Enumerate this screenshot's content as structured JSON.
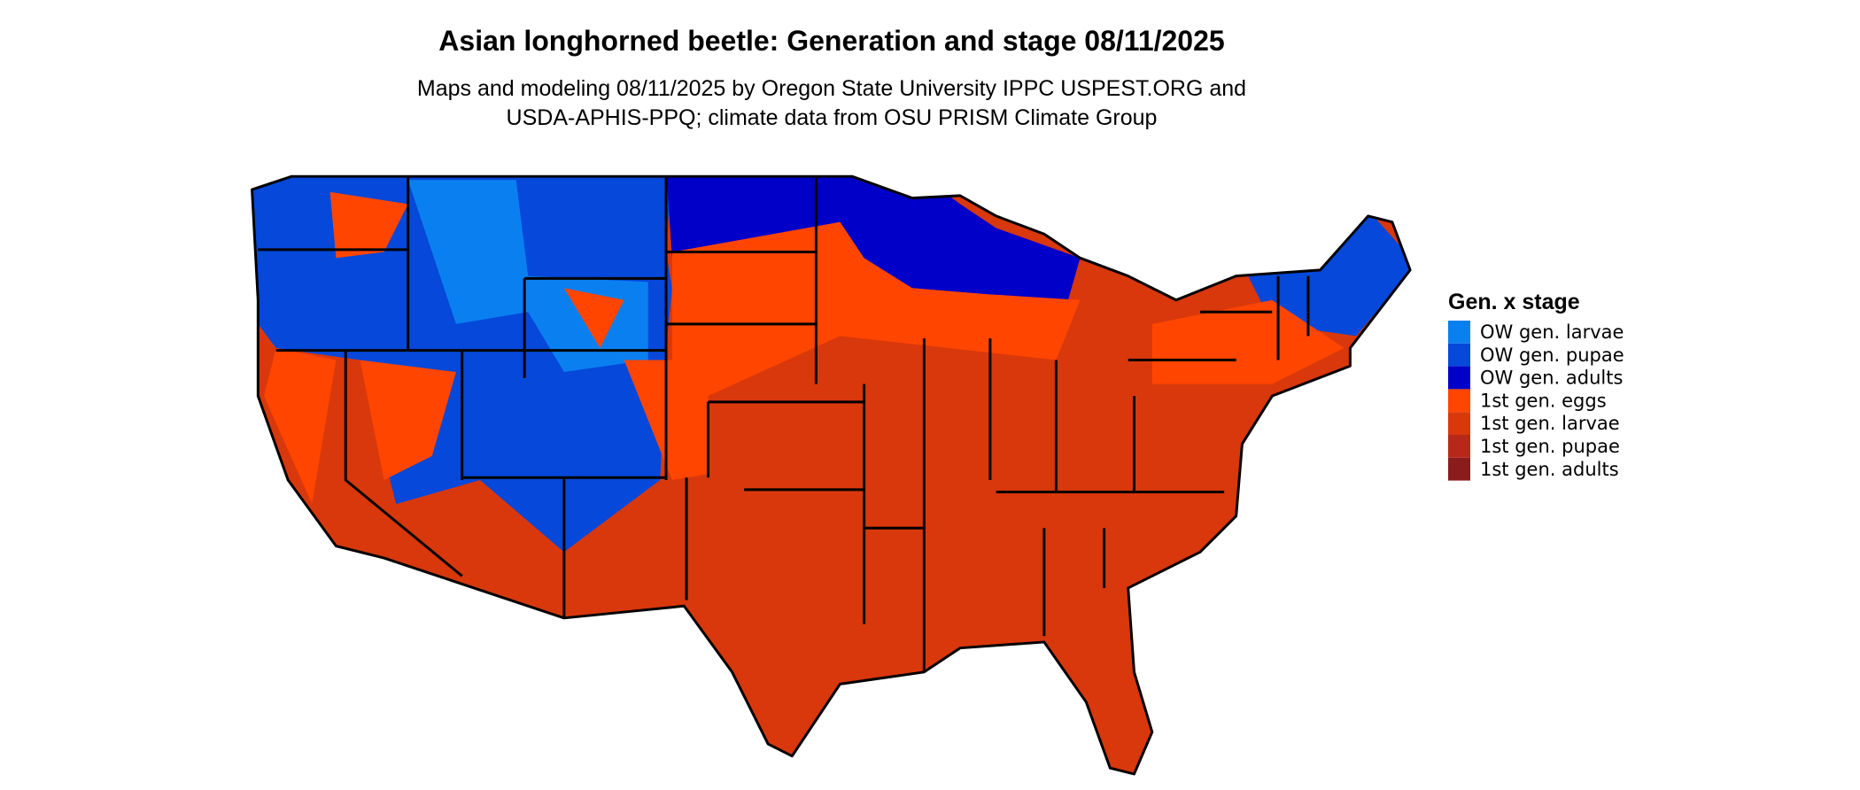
{
  "title": "Asian longhorned beetle: Generation and stage 08/11/2025",
  "subtitle": [
    "Maps and modeling 08/11/2025 by Oregon State University IPPC USPEST.ORG and",
    "USDA-APHIS-PPQ; climate data from OSU PRISM Climate Group"
  ],
  "legend": {
    "title": "Gen. x stage",
    "items": [
      {
        "label": "OW gen. larvae",
        "color": "#0a80f0"
      },
      {
        "label": "OW gen. pupae",
        "color": "#0548da"
      },
      {
        "label": "OW gen. adults",
        "color": "#0000c8"
      },
      {
        "label": "1st gen. eggs",
        "color": "#ff4500"
      },
      {
        "label": "1st gen. larvae",
        "color": "#d8380c"
      },
      {
        "label": "1st gen. pupae",
        "color": "#b8281a"
      },
      {
        "label": "1st gen. adults",
        "color": "#8b1c1c"
      }
    ]
  }
}
